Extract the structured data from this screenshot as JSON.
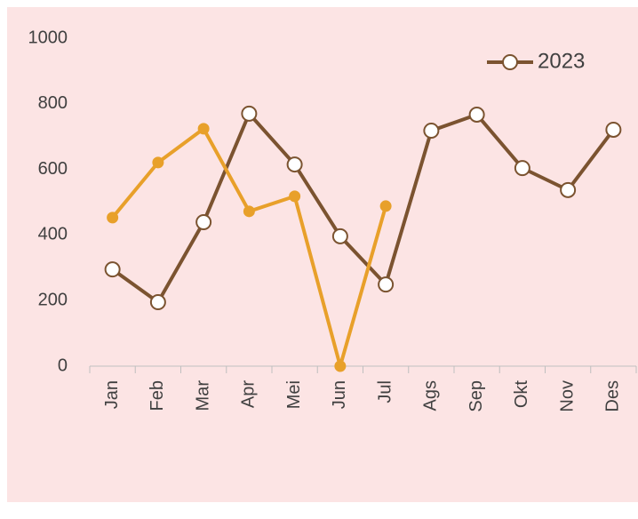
{
  "chart_data": {
    "type": "line",
    "categories": [
      "Jan",
      "Feb",
      "Mar",
      "Apr",
      "Mei",
      "Jun",
      "Jul",
      "Ags",
      "Sep",
      "Okt",
      "Nov",
      "Des"
    ],
    "series": [
      {
        "name": "2023",
        "color": "#7b5330",
        "marker": "hollow",
        "values": [
          295,
          195,
          439,
          770,
          615,
          396,
          249,
          718,
          767,
          604,
          537,
          721
        ]
      },
      {
        "color": "#e8a02a",
        "marker": "filled",
        "values": [
          453,
          621,
          724,
          472,
          518,
          0,
          488,
          null,
          null,
          null,
          null,
          null
        ]
      }
    ],
    "ylim": [
      0,
      1000
    ],
    "yticks": [
      0,
      200,
      400,
      600,
      800,
      1000
    ],
    "grid": false,
    "legend": "top-right"
  }
}
